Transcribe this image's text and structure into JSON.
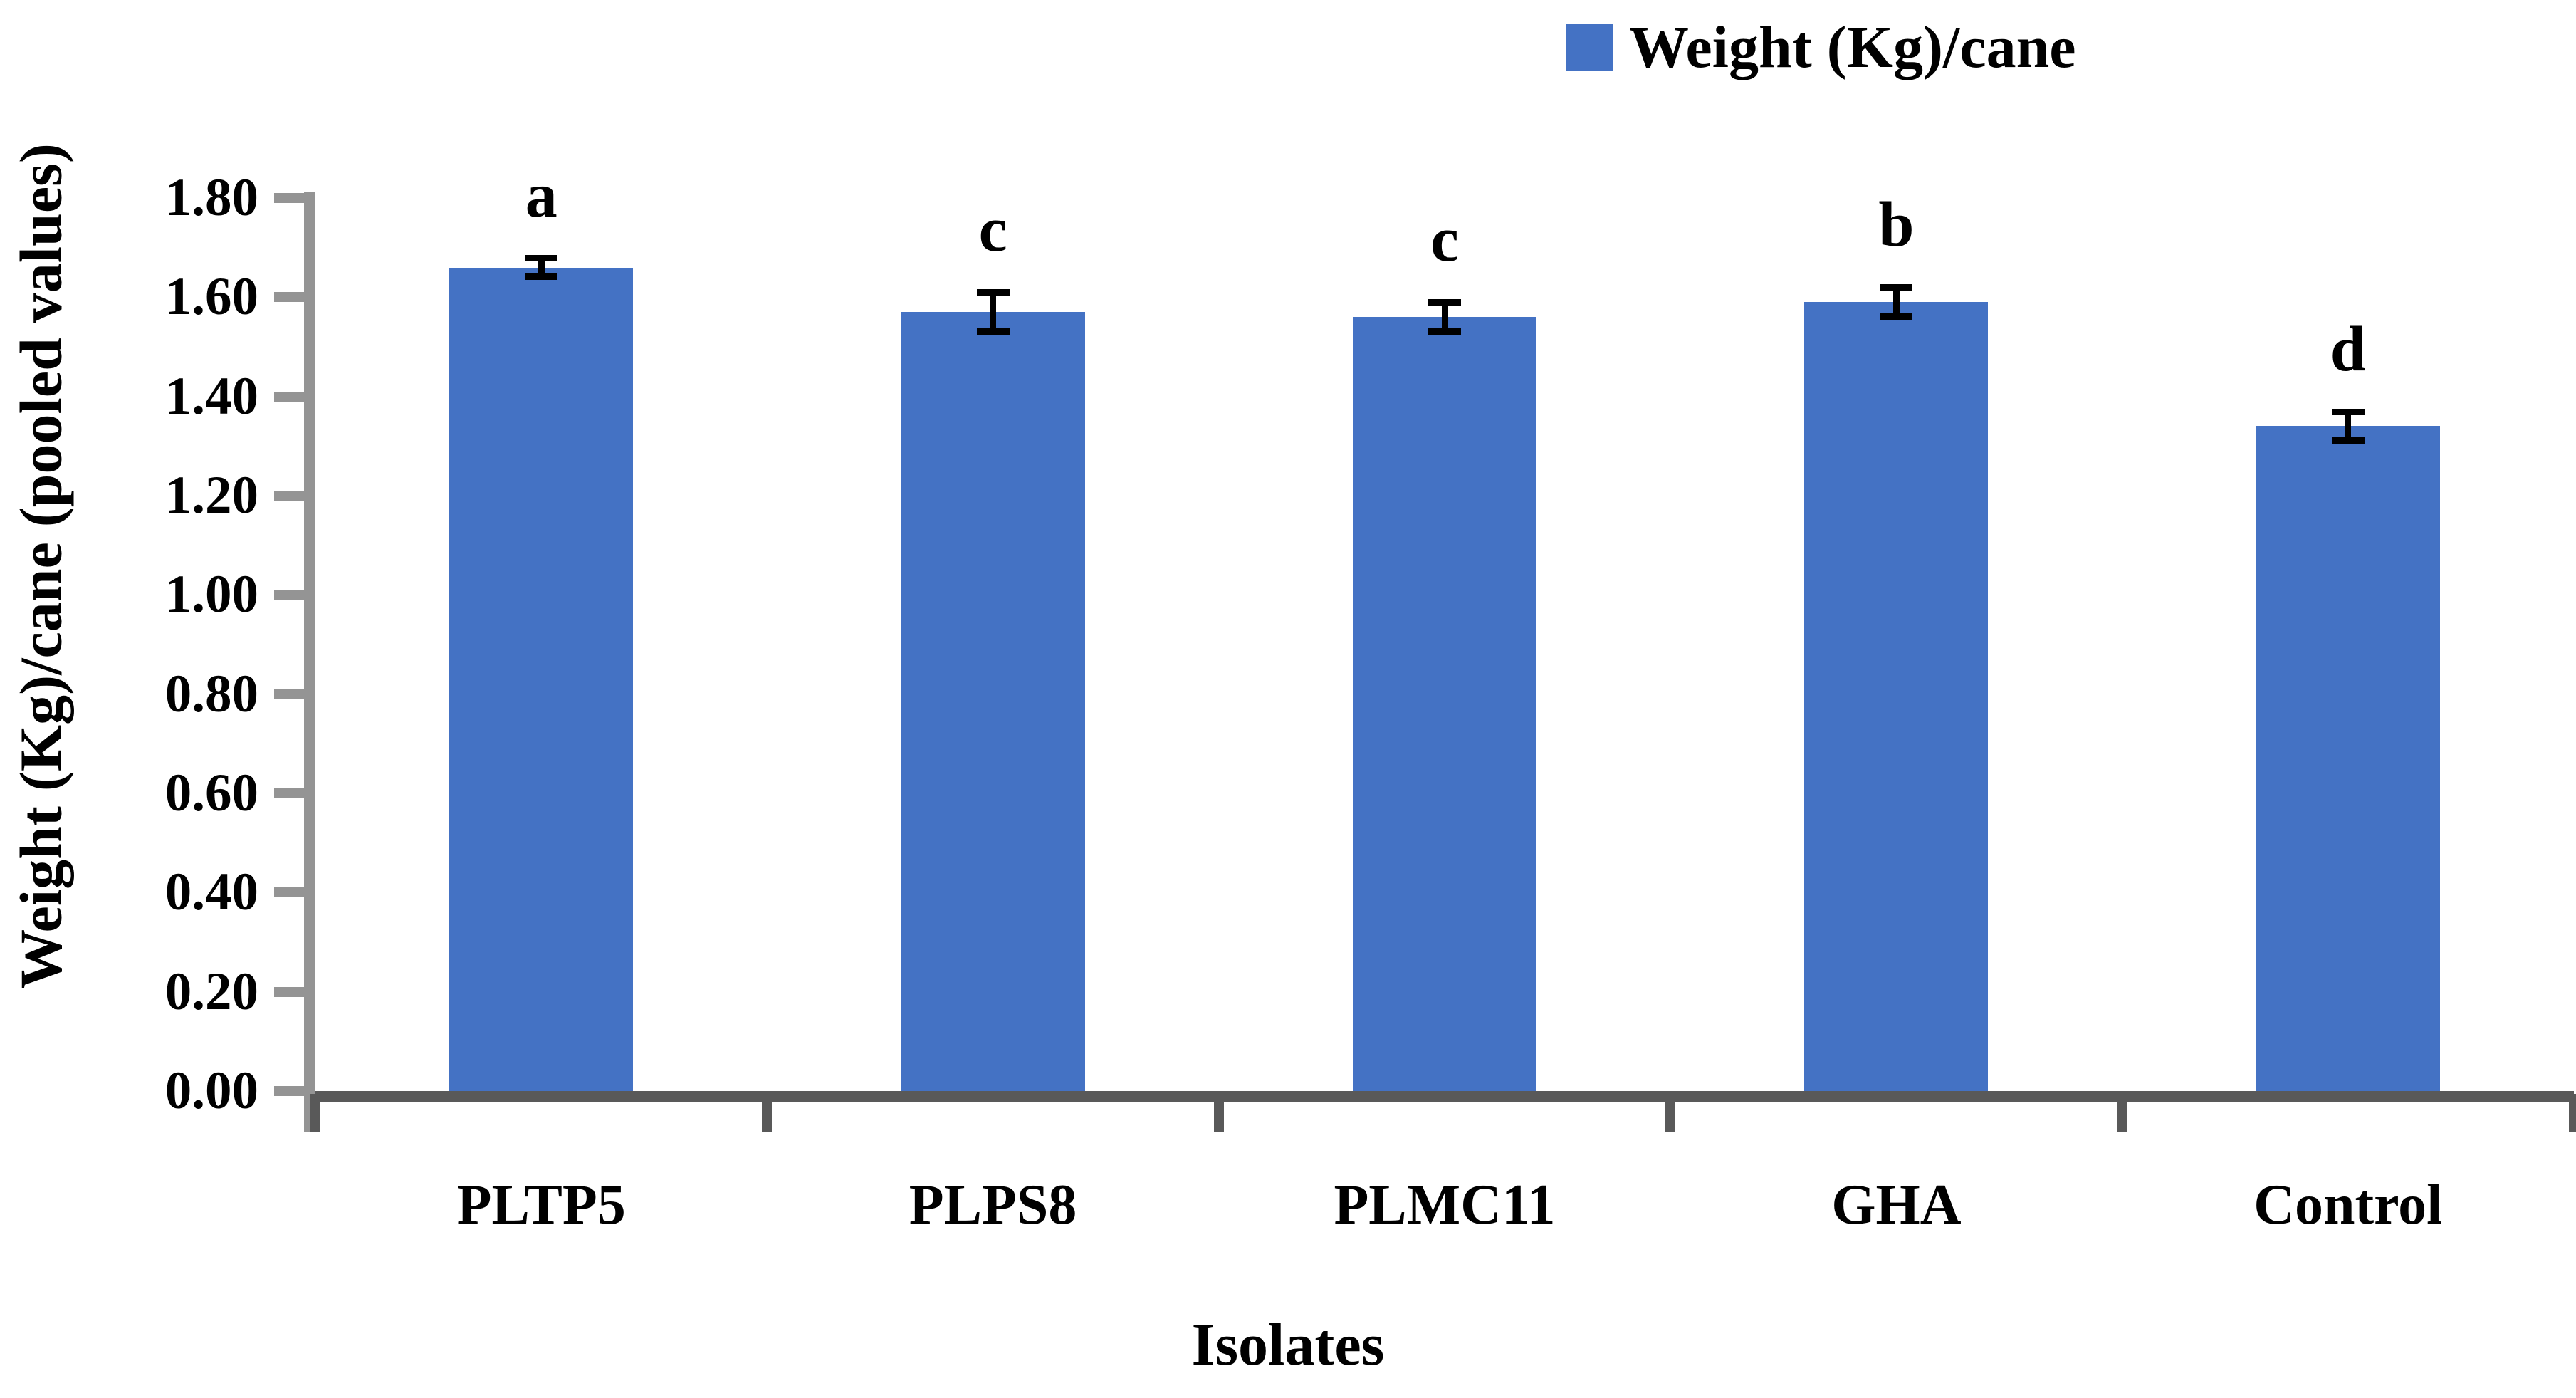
{
  "chart_data": {
    "type": "bar",
    "title": "",
    "categories": [
      "PLTP5",
      "PLPS8",
      "PLMC11",
      "GHA",
      "Control"
    ],
    "values": [
      1.66,
      1.57,
      1.56,
      1.59,
      1.34
    ],
    "errors": [
      0.02,
      0.04,
      0.03,
      0.03,
      0.03
    ],
    "significance_letters": [
      "a",
      "c",
      "c",
      "b",
      "d"
    ],
    "legend": [
      "Weight (Kg)/cane"
    ],
    "legend_position": "top-center",
    "xlabel": "Isolates",
    "ylabel": "Weight (Kg)/cane (pooled values)",
    "ylim": [
      0,
      1.8
    ],
    "ytick_step": 0.2,
    "ytick_labels": [
      "0.00",
      "0.20",
      "0.40",
      "0.60",
      "0.80",
      "1.00",
      "1.20",
      "1.40",
      "1.60",
      "1.80"
    ],
    "grid": false,
    "error_bars": true,
    "colors": {
      "bar": "#4472C4",
      "y_axis": "#949494",
      "x_axis": "#595959",
      "error_bar": "#000000",
      "text": "#000000"
    }
  }
}
